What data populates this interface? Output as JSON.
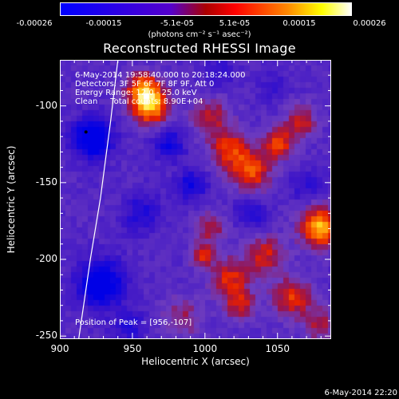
{
  "colorbar": {
    "ticks": [
      "-0.00026",
      "-0.00015",
      "-5.1e-05",
      "5.1e-05",
      "0.00015",
      "0.00026"
    ],
    "units": "(photons cm⁻² s⁻¹ asec⁻²)",
    "range": [
      -0.00026,
      0.00026
    ],
    "colormap": [
      "#0000ff",
      "#5500cc",
      "#ff0000",
      "#ffff00",
      "#ffffff"
    ]
  },
  "chart_data": {
    "type": "heatmap",
    "title": "Reconstructed RHESSI Image",
    "xlabel": "Heliocentric X (arcsec)",
    "ylabel": "Heliocentric Y (arcsec)",
    "xlim": [
      900,
      1087
    ],
    "ylim": [
      -252,
      -70
    ],
    "xticks": [
      "900",
      "950",
      "1000",
      "1050"
    ],
    "yticks": [
      "-100",
      "-150",
      "-200",
      "-250"
    ],
    "annotations": [
      "6-May-2014 19:58:40.000 to 20:18:24.000",
      "Detectors: 3F 5F 6F 7F 8F 9F, Att 0",
      "Energy Range: 12.0 - 25.0 keV",
      "Clean     Total counts: 8.90E+04"
    ],
    "peak_label": "Position of Peak = [956,-107]",
    "peak": [
      956,
      -107
    ]
  },
  "timestamp": "6-May-2014 22:20"
}
